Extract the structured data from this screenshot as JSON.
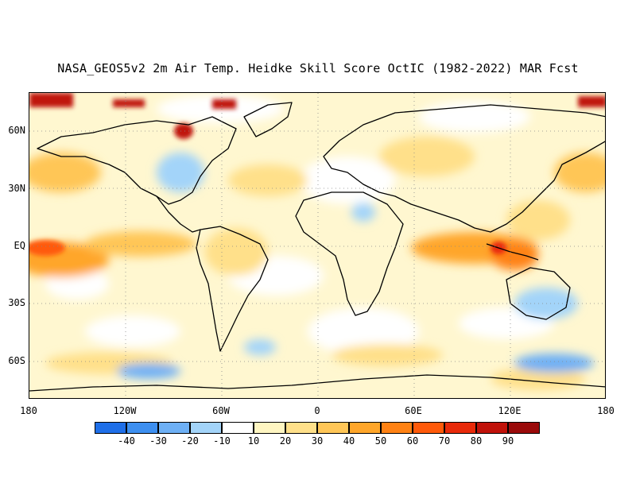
{
  "title": "NASA_GEOS5v2 2m Air Temp. Heidke Skill Score OctIC (1982-2022) MAR Fcst",
  "map": {
    "projection": "equirectangular",
    "lon_range": [
      -180,
      180
    ],
    "lat_range": [
      -80,
      80
    ],
    "grid": "dotted",
    "lat_ticks": [
      {
        "lat": 60,
        "label": "60N"
      },
      {
        "lat": 30,
        "label": "30N"
      },
      {
        "lat": 0,
        "label": "EQ"
      },
      {
        "lat": -30,
        "label": "30S"
      },
      {
        "lat": -60,
        "label": "60S"
      }
    ],
    "lon_ticks": [
      {
        "lon": -180,
        "label": "180"
      },
      {
        "lon": -120,
        "label": "120W"
      },
      {
        "lon": -60,
        "label": "60W"
      },
      {
        "lon": 0,
        "label": "0"
      },
      {
        "lon": 60,
        "label": "60E"
      },
      {
        "lon": 120,
        "label": "120E"
      },
      {
        "lon": 180,
        "label": "180"
      }
    ]
  },
  "colorbar": {
    "colors": [
      "#1f6fe8",
      "#3d8ff0",
      "#6eb0f5",
      "#a3d4f9",
      "#ffffff",
      "#fff6c2",
      "#ffe08a",
      "#ffc657",
      "#ffa62a",
      "#ff8214",
      "#ff5a0a",
      "#e82a0a",
      "#c0120a",
      "#9a0a0a"
    ],
    "labels": [
      "-40",
      "-30",
      "-20",
      "-10",
      "10",
      "20",
      "30",
      "40",
      "50",
      "60",
      "70",
      "80",
      "90"
    ]
  }
}
